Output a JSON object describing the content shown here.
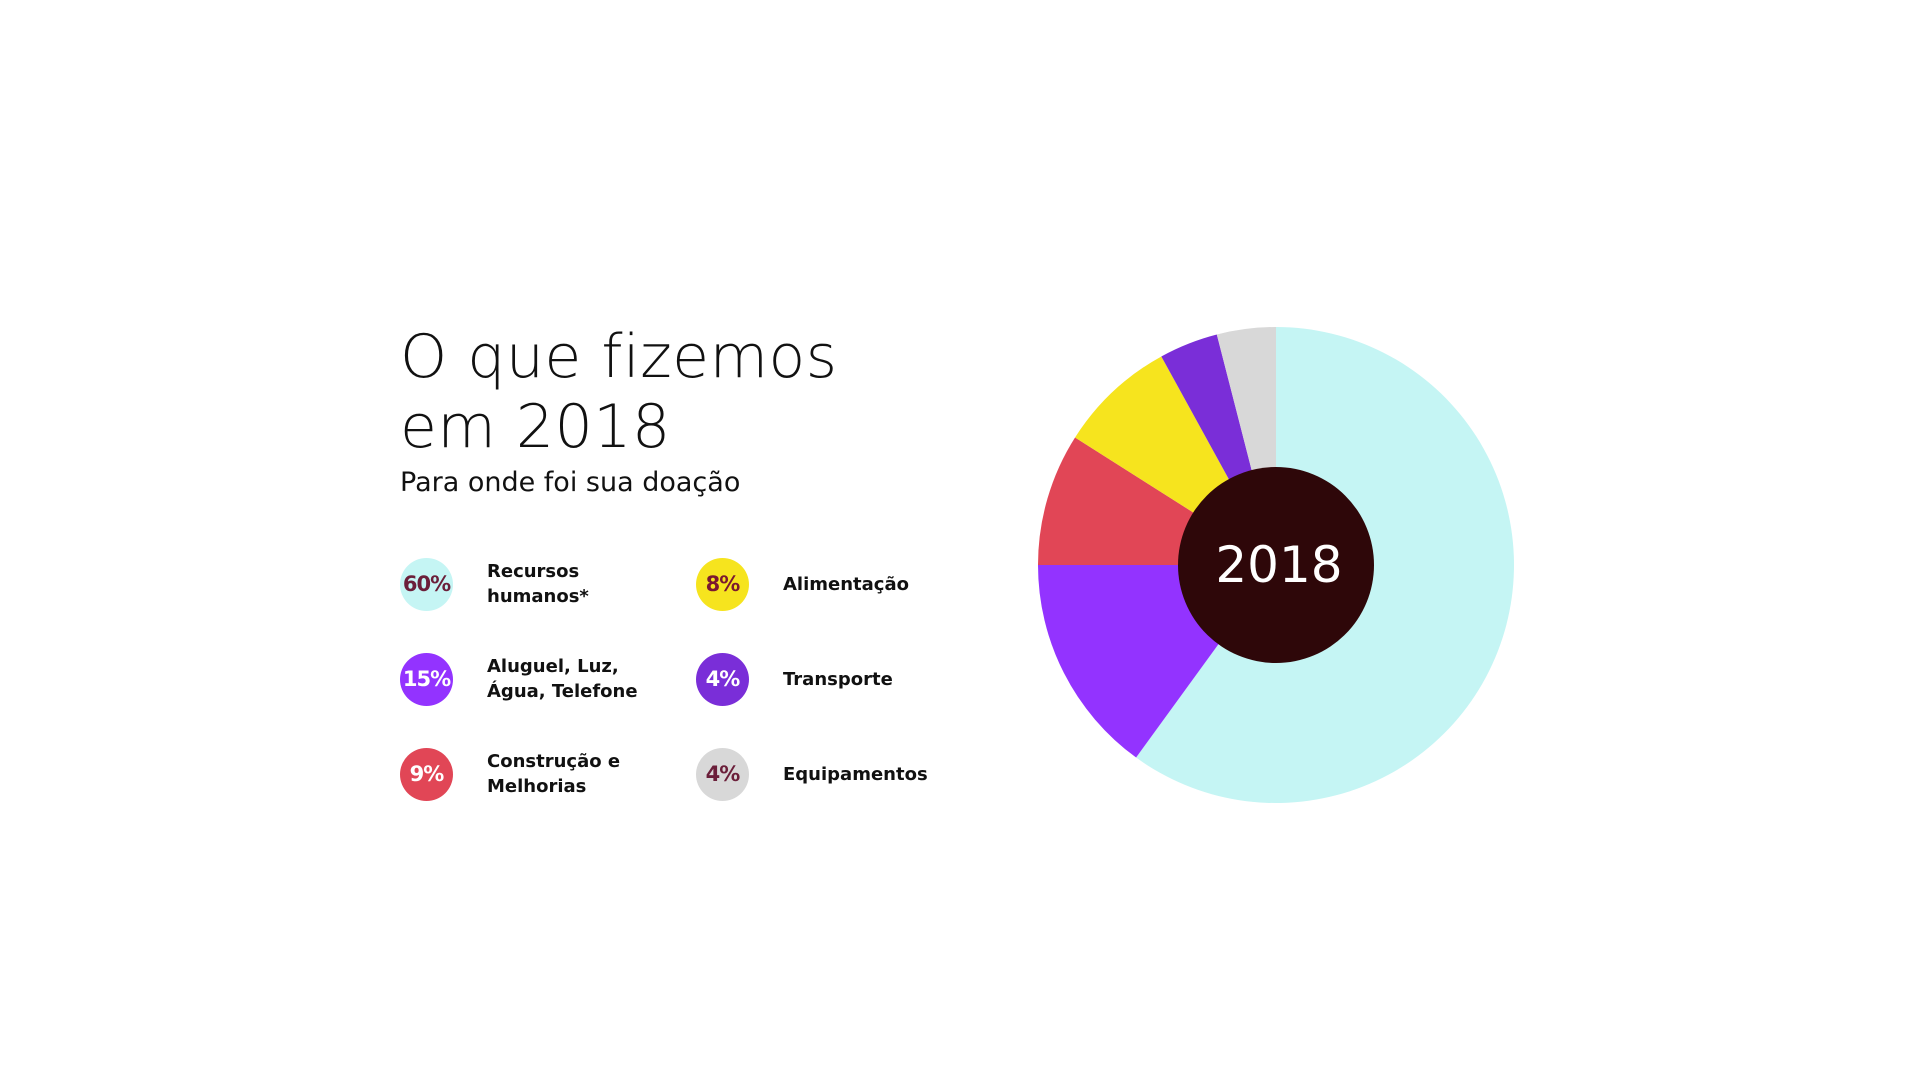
{
  "title": "O que fizemos em 2018",
  "subtitle": "Para onde foi sua doação",
  "chart_data": {
    "type": "pie",
    "center_label": "2018",
    "slices": [
      {
        "label": "Recursos humanos*",
        "value": 60,
        "value_label": "60%",
        "color": "#c5f5f4",
        "text_color": "#6b1f3a"
      },
      {
        "label": "Aluguel, Luz, Água, Telefone",
        "value": 15,
        "value_label": "15%",
        "color": "#9333ff",
        "text_color": "#ffffff"
      },
      {
        "label": "Construção e Melhorias",
        "value": 9,
        "value_label": "9%",
        "color": "#e14656",
        "text_color": "#ffffff"
      },
      {
        "label": "Alimentação",
        "value": 8,
        "value_label": "8%",
        "color": "#f6e41e",
        "text_color": "#7a1830"
      },
      {
        "label": "Transporte",
        "value": 4,
        "value_label": "4%",
        "color": "#7a2ed8",
        "text_color": "#ffffff"
      },
      {
        "label": "Equipamentos",
        "value": 4,
        "value_label": "4%",
        "color": "#d8d8d8",
        "text_color": "#6b1f3a"
      }
    ],
    "hole_color": "#2e0709"
  }
}
